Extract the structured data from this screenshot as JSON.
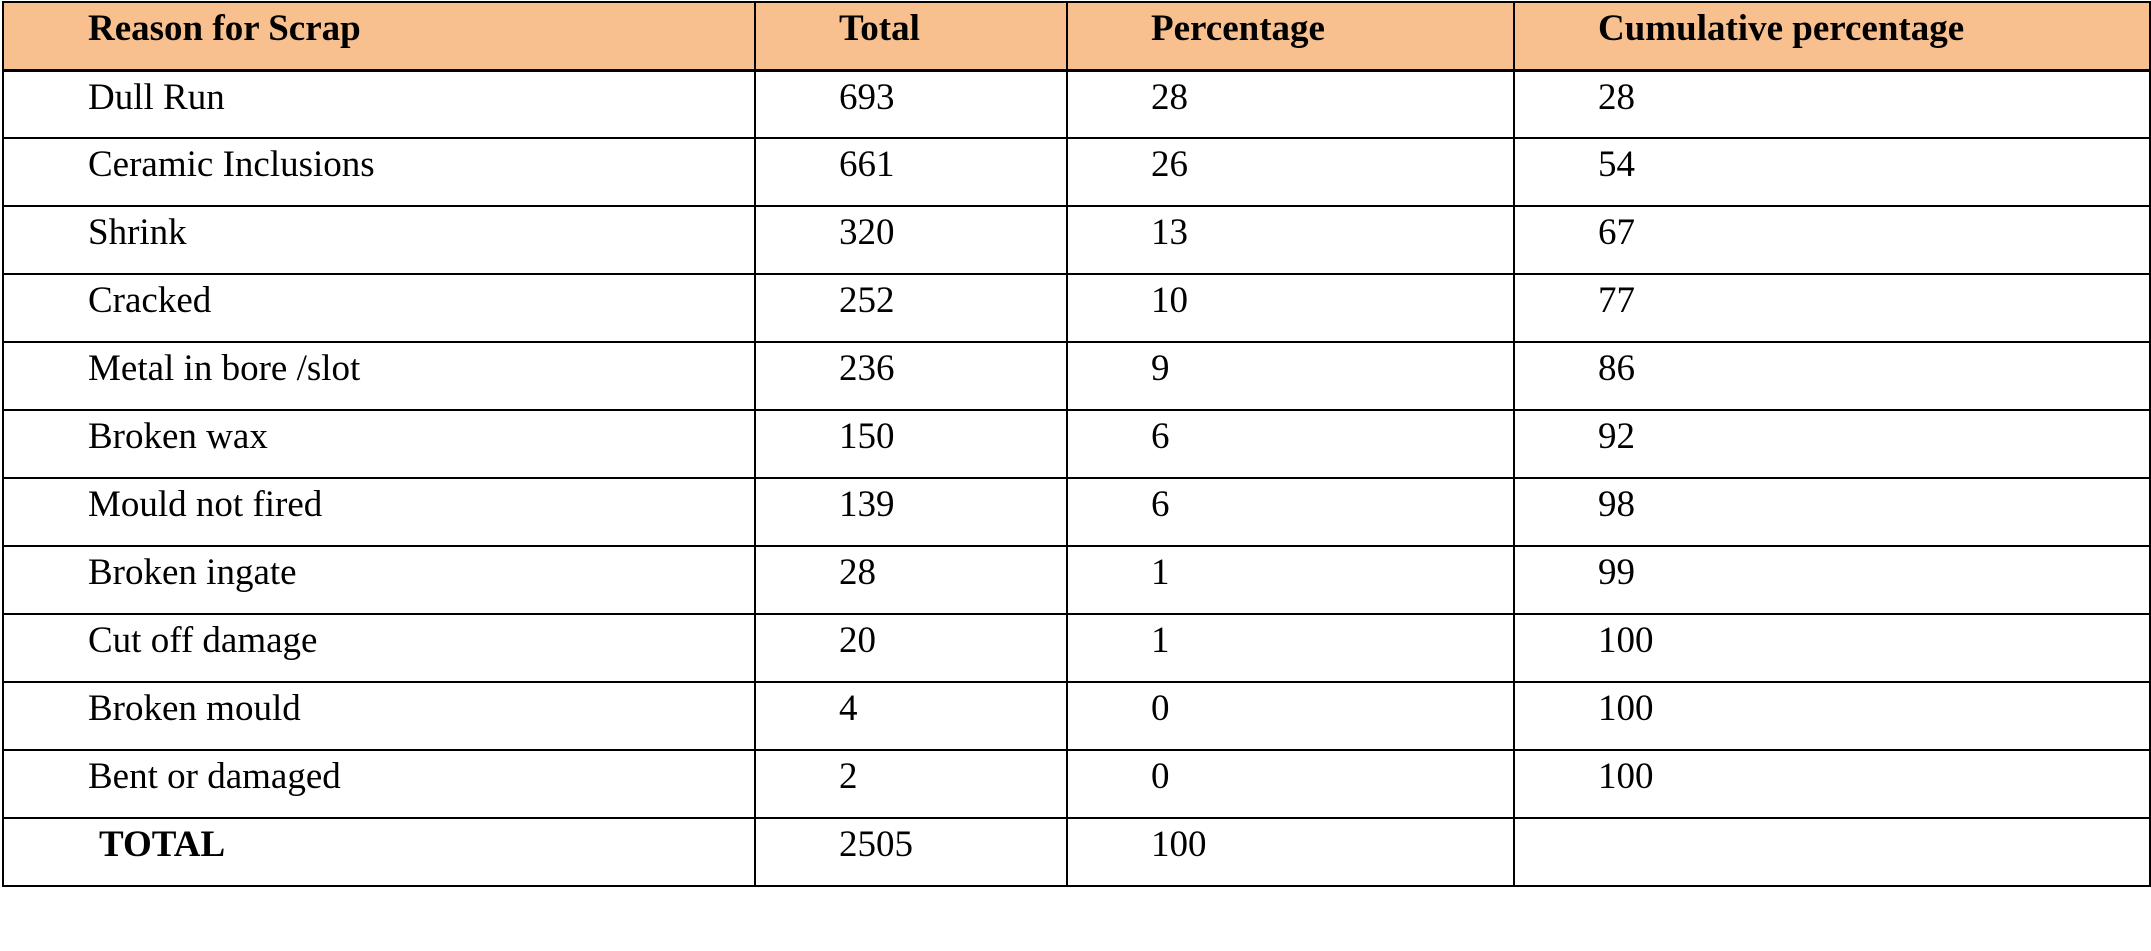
{
  "table": {
    "header": [
      "Reason for Scrap",
      "Total",
      "Percentage",
      "Cumulative percentage"
    ],
    "rows": [
      [
        "Dull Run",
        693,
        28,
        28
      ],
      [
        "Ceramic Inclusions",
        661,
        26,
        54
      ],
      [
        "Shrink",
        320,
        13,
        67
      ],
      [
        "Cracked",
        252,
        10,
        77
      ],
      [
        "Metal in bore /slot",
        236,
        9,
        86
      ],
      [
        "Broken wax",
        150,
        6,
        92
      ],
      [
        "Mould not fired",
        139,
        6,
        98
      ],
      [
        "Broken ingate",
        28,
        1,
        99
      ],
      [
        "Cut off damage",
        20,
        1,
        100
      ],
      [
        "Broken mould",
        4,
        0,
        100
      ],
      [
        "Bent or damaged",
        2,
        0,
        100
      ]
    ],
    "total": {
      "label": "TOTAL",
      "total": 2505,
      "percentage": 100
    }
  }
}
